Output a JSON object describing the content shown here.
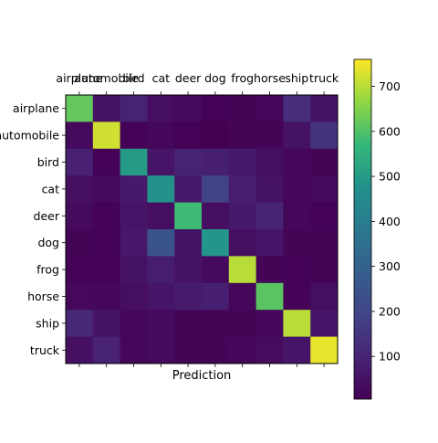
{
  "chart_data": {
    "type": "heatmap",
    "title": "",
    "xlabel": "Prediction",
    "ylabel": "",
    "x_categories": [
      "airplane",
      "automobile",
      "bird",
      "cat",
      "deer",
      "dog",
      "frog",
      "horse",
      "ship",
      "truck"
    ],
    "y_categories": [
      "airplane",
      "automobile",
      "bird",
      "cat",
      "deer",
      "dog",
      "frog",
      "horse",
      "ship",
      "truck"
    ],
    "values": [
      [
        620,
        50,
        95,
        40,
        30,
        10,
        15,
        20,
        130,
        50
      ],
      [
        30,
        720,
        10,
        20,
        10,
        5,
        15,
        15,
        50,
        140
      ],
      [
        90,
        10,
        500,
        60,
        95,
        85,
        70,
        40,
        20,
        15
      ],
      [
        40,
        30,
        70,
        480,
        70,
        190,
        80,
        50,
        20,
        30
      ],
      [
        30,
        10,
        60,
        40,
        580,
        40,
        70,
        100,
        20,
        10
      ],
      [
        15,
        10,
        65,
        250,
        55,
        490,
        40,
        60,
        15,
        15
      ],
      [
        10,
        10,
        50,
        80,
        50,
        30,
        700,
        15,
        10,
        15
      ],
      [
        25,
        20,
        40,
        60,
        75,
        85,
        20,
        610,
        10,
        40
      ],
      [
        110,
        55,
        20,
        30,
        15,
        15,
        15,
        20,
        700,
        60
      ],
      [
        45,
        95,
        20,
        30,
        15,
        15,
        20,
        35,
        60,
        740
      ]
    ],
    "colormap": "viridis",
    "colorbar": {
      "min": 5,
      "max": 760,
      "ticks": [
        100,
        200,
        300,
        400,
        500,
        600,
        700
      ]
    }
  }
}
